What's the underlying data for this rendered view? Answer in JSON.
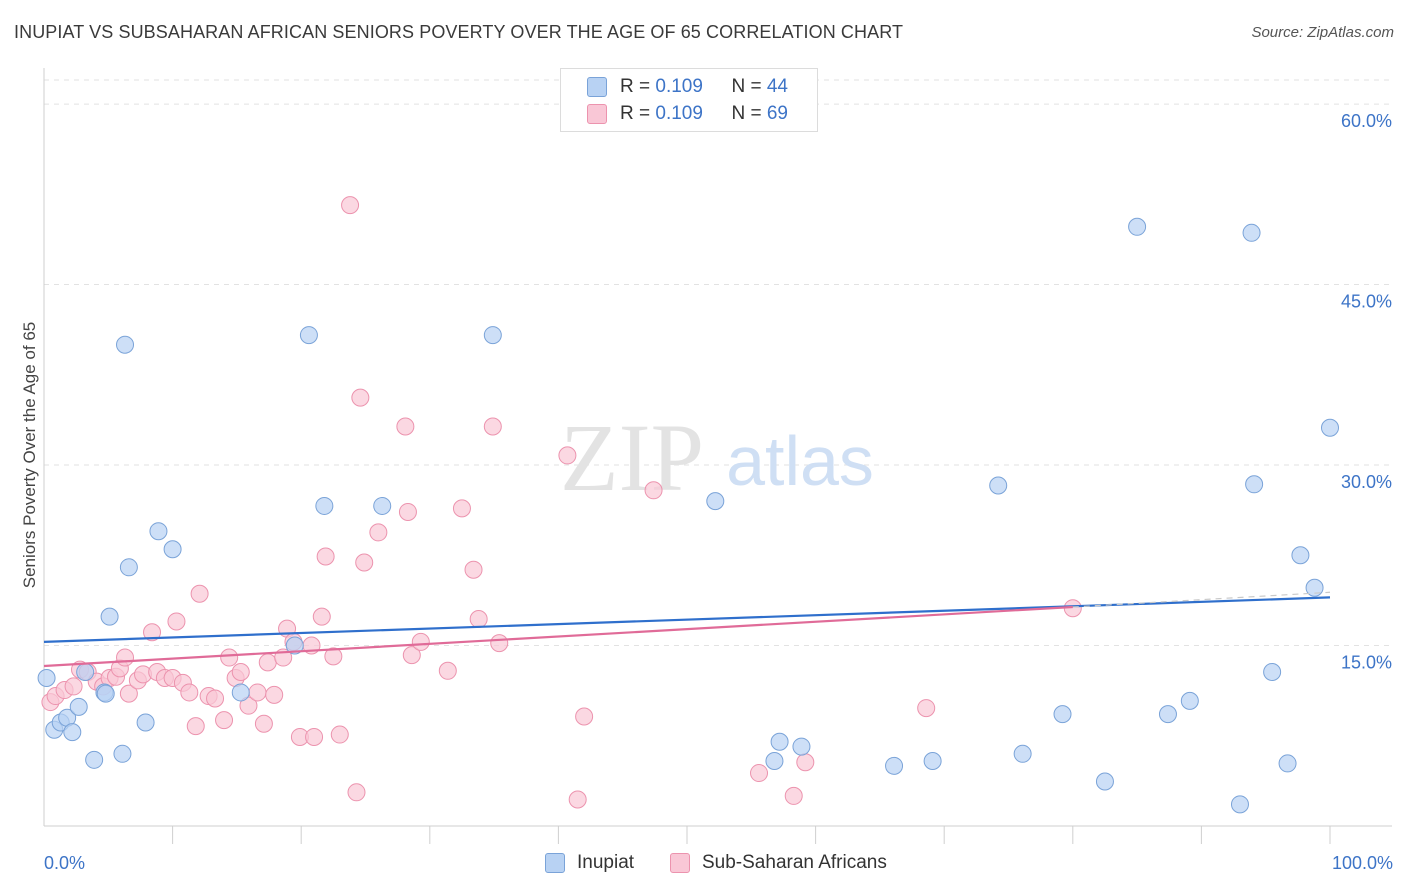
{
  "header": {
    "title": "INUPIAT VS SUBSAHARAN AFRICAN SENIORS POVERTY OVER THE AGE OF 65 CORRELATION CHART",
    "source": "Source: ZipAtlas.com"
  },
  "stats": [
    {
      "r_label": "R = ",
      "r_value": "0.109",
      "n_label": "N = ",
      "n_value": "44"
    },
    {
      "r_label": "R = ",
      "r_value": "0.109",
      "n_label": "N = ",
      "n_value": "69"
    }
  ],
  "legend": [
    "Inupiat",
    "Sub-Saharan Africans"
  ],
  "watermark": {
    "zip": "ZIP",
    "atlas": "atlas"
  },
  "colors": {
    "blue_fill": "#b8d2f3",
    "blue_stroke": "#7aa3d8",
    "blue_line": "#2f6fcc",
    "pink_fill": "#f9c7d6",
    "pink_stroke": "#ec93ae",
    "pink_line": "#e06b98",
    "tick_label": "#3d74c7"
  },
  "chart_data": {
    "type": "scatter",
    "title": "INUPIAT VS SUBSAHARAN AFRICAN SENIORS POVERTY OVER THE AGE OF 65 CORRELATION CHART",
    "xlabel": "",
    "ylabel": "Seniors Poverty Over the Age of 65",
    "xlim": [
      0,
      100
    ],
    "ylim": [
      0,
      62
    ],
    "x_tick_labels": [
      "0.0%",
      "100.0%"
    ],
    "y_ticks": [
      15,
      30,
      45,
      60
    ],
    "y_tick_labels": [
      "15.0%",
      "30.0%",
      "45.0%",
      "60.0%"
    ],
    "grid": true,
    "legend_position": "bottom-center",
    "series": [
      {
        "name": "Inupiat",
        "r": 0.109,
        "n": 44,
        "trend": {
          "x": [
            0,
            100
          ],
          "y": [
            15.3,
            19.0
          ]
        },
        "points": [
          [
            0.2,
            12.3
          ],
          [
            0.8,
            8.0
          ],
          [
            1.3,
            8.6
          ],
          [
            1.8,
            9.0
          ],
          [
            2.2,
            7.8
          ],
          [
            2.7,
            9.9
          ],
          [
            3.2,
            12.8
          ],
          [
            3.9,
            5.5
          ],
          [
            4.7,
            11.1
          ],
          [
            4.8,
            11.0
          ],
          [
            5.1,
            17.4
          ],
          [
            6.1,
            6.0
          ],
          [
            6.3,
            40.0
          ],
          [
            6.6,
            21.5
          ],
          [
            7.9,
            8.6
          ],
          [
            8.9,
            24.5
          ],
          [
            10.0,
            23.0
          ],
          [
            15.3,
            11.1
          ],
          [
            19.5,
            15.0
          ],
          [
            20.6,
            40.8
          ],
          [
            21.8,
            26.6
          ],
          [
            26.3,
            26.6
          ],
          [
            34.9,
            40.8
          ],
          [
            52.2,
            27.0
          ],
          [
            56.8,
            5.4
          ],
          [
            57.2,
            7.0
          ],
          [
            58.9,
            6.6
          ],
          [
            66.1,
            5.0
          ],
          [
            69.1,
            5.4
          ],
          [
            74.2,
            28.3
          ],
          [
            76.1,
            6.0
          ],
          [
            79.2,
            9.3
          ],
          [
            82.5,
            3.7
          ],
          [
            85.0,
            49.8
          ],
          [
            87.4,
            9.3
          ],
          [
            89.1,
            10.4
          ],
          [
            93.0,
            1.8
          ],
          [
            93.9,
            49.3
          ],
          [
            94.1,
            28.4
          ],
          [
            95.5,
            12.8
          ],
          [
            96.7,
            5.2
          ],
          [
            97.7,
            22.5
          ],
          [
            98.8,
            19.8
          ],
          [
            100.0,
            33.1
          ]
        ]
      },
      {
        "name": "Sub-Saharan Africans",
        "r": 0.109,
        "n": 69,
        "trend": {
          "x": [
            0,
            80
          ],
          "y": [
            13.3,
            18.2
          ]
        },
        "points": [
          [
            0.5,
            10.3
          ],
          [
            0.9,
            10.8
          ],
          [
            1.6,
            11.3
          ],
          [
            2.3,
            11.6
          ],
          [
            2.8,
            13.0
          ],
          [
            3.4,
            12.8
          ],
          [
            4.1,
            12.0
          ],
          [
            4.6,
            11.6
          ],
          [
            5.1,
            12.3
          ],
          [
            5.6,
            12.4
          ],
          [
            5.9,
            13.1
          ],
          [
            6.3,
            14.0
          ],
          [
            6.6,
            11.0
          ],
          [
            7.3,
            12.1
          ],
          [
            7.7,
            12.6
          ],
          [
            8.4,
            16.1
          ],
          [
            8.8,
            12.8
          ],
          [
            9.4,
            12.3
          ],
          [
            10.0,
            12.3
          ],
          [
            10.3,
            17.0
          ],
          [
            10.8,
            11.9
          ],
          [
            11.3,
            11.1
          ],
          [
            11.8,
            8.3
          ],
          [
            12.1,
            19.3
          ],
          [
            12.8,
            10.8
          ],
          [
            13.3,
            10.6
          ],
          [
            14.0,
            8.8
          ],
          [
            14.4,
            14.0
          ],
          [
            14.9,
            12.3
          ],
          [
            15.3,
            12.8
          ],
          [
            15.9,
            10.0
          ],
          [
            16.6,
            11.1
          ],
          [
            17.1,
            8.5
          ],
          [
            17.4,
            13.6
          ],
          [
            17.9,
            10.9
          ],
          [
            18.6,
            14.0
          ],
          [
            18.9,
            16.4
          ],
          [
            19.4,
            15.3
          ],
          [
            19.9,
            7.4
          ],
          [
            20.8,
            15.0
          ],
          [
            21.0,
            7.4
          ],
          [
            21.6,
            17.4
          ],
          [
            21.9,
            22.4
          ],
          [
            22.5,
            14.1
          ],
          [
            23.0,
            7.6
          ],
          [
            23.8,
            51.6
          ],
          [
            24.3,
            2.8
          ],
          [
            24.6,
            35.6
          ],
          [
            24.9,
            21.9
          ],
          [
            26.0,
            24.4
          ],
          [
            28.1,
            33.2
          ],
          [
            28.3,
            26.1
          ],
          [
            28.6,
            14.2
          ],
          [
            29.3,
            15.3
          ],
          [
            31.4,
            12.9
          ],
          [
            32.5,
            26.4
          ],
          [
            33.4,
            21.3
          ],
          [
            33.8,
            17.2
          ],
          [
            34.9,
            33.2
          ],
          [
            35.4,
            15.2
          ],
          [
            40.7,
            30.8
          ],
          [
            41.5,
            2.2
          ],
          [
            42.0,
            9.1
          ],
          [
            47.4,
            27.9
          ],
          [
            55.6,
            4.4
          ],
          [
            58.3,
            2.5
          ],
          [
            59.2,
            5.3
          ],
          [
            68.6,
            9.8
          ],
          [
            80.0,
            18.1
          ]
        ]
      }
    ]
  }
}
